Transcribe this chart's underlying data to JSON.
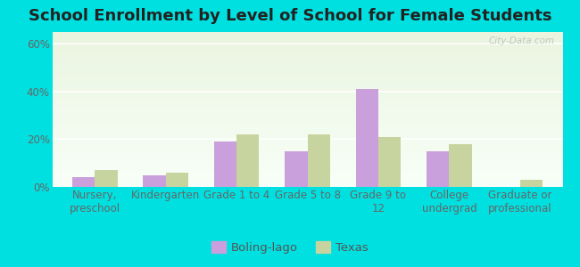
{
  "title": "School Enrollment by Level of School for Female Students",
  "categories": [
    "Nursery,\npreschool",
    "Kindergarten",
    "Grade 1 to 4",
    "Grade 5 to 8",
    "Grade 9 to\n12",
    "College\nundergrad",
    "Graduate or\nprofessional"
  ],
  "boling_lago": [
    4,
    5,
    19,
    15,
    41,
    15,
    0
  ],
  "texas": [
    7,
    6,
    22,
    22,
    21,
    18,
    3
  ],
  "bar_color_boling": "#c9a0dc",
  "bar_color_texas": "#c8d4a0",
  "background_color": "#00e0e0",
  "plot_bg_colors": [
    "#eaf5e0",
    "#f8fff8"
  ],
  "yticks": [
    0,
    20,
    40,
    60
  ],
  "ylim": [
    0,
    65
  ],
  "legend_labels": [
    "Boling-lago",
    "Texas"
  ],
  "watermark": "City-Data.com",
  "title_fontsize": 13,
  "tick_fontsize": 8.5,
  "legend_fontsize": 9.5,
  "bar_width": 0.32
}
